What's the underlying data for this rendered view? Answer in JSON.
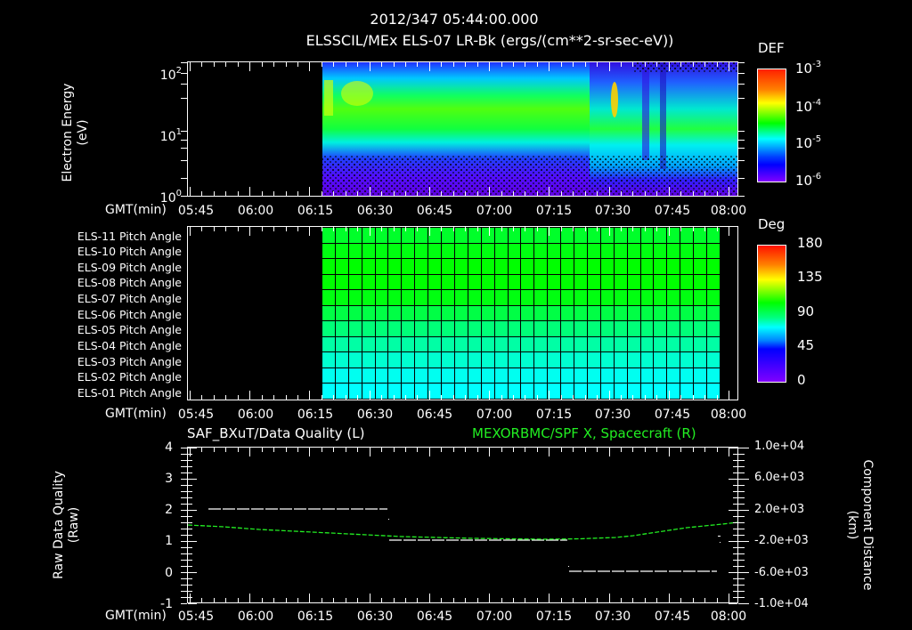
{
  "header": {
    "datetime": "2012/347 05:44:00.000",
    "subtitle": "ELSSCIL/MEx ELS-07 LR-Bk  (ergs/(cm**2-sr-sec-eV))"
  },
  "x_axis": {
    "label": "GMT(min)",
    "ticks": [
      "05:45",
      "06:00",
      "06:15",
      "06:30",
      "06:45",
      "07:00",
      "07:15",
      "07:30",
      "07:45",
      "08:00"
    ]
  },
  "panel1": {
    "ylabel_line1": "Electron Energy",
    "ylabel_line2": "(eV)",
    "yticks": [
      {
        "base": "10",
        "exp": "2"
      },
      {
        "base": "10",
        "exp": "1"
      },
      {
        "base": "10",
        "exp": "0"
      }
    ],
    "colorbar": {
      "title": "DEF",
      "ticks": [
        {
          "base": "10",
          "exp": "-3"
        },
        {
          "base": "10",
          "exp": "-4"
        },
        {
          "base": "10",
          "exp": "-5"
        },
        {
          "base": "10",
          "exp": "-6"
        }
      ]
    }
  },
  "panel2": {
    "rows": [
      "ELS-11 Pitch Angle",
      "ELS-10 Pitch Angle",
      "ELS-09 Pitch Angle",
      "ELS-08 Pitch Angle",
      "ELS-07 Pitch Angle",
      "ELS-06 Pitch Angle",
      "ELS-05 Pitch Angle",
      "ELS-04 Pitch Angle",
      "ELS-03 Pitch Angle",
      "ELS-02 Pitch Angle",
      "ELS-01 Pitch Angle"
    ],
    "row_colors": [
      "#00ff2a",
      "#00ff10",
      "#00ff00",
      "#00ff00",
      "#00ff10",
      "#00ff45",
      "#00ff78",
      "#00ffa5",
      "#00ffd0",
      "#00fff0",
      "#00ffff"
    ],
    "colorbar": {
      "title": "Deg",
      "ticks": [
        "180",
        "135",
        "90",
        "45",
        "0"
      ]
    }
  },
  "panel3": {
    "left_title": "SAF_BXuT/Data Quality (L)",
    "right_title": "MEXORBMC/SPF X, Spacecraft (R)",
    "right_title_color": "#22ee22",
    "ylabel_left_line1": "Raw Data Quality",
    "ylabel_left_line2": "(Raw)",
    "ylabel_right_line1": "Component Distance",
    "ylabel_right_line2": "(km)",
    "yticks_left": [
      "4",
      "3",
      "2",
      "1",
      "0",
      "-1"
    ],
    "yticks_right": [
      "1.0e+04",
      "6.0e+03",
      "2.0e+03",
      "-2.0e+03",
      "-6.0e+03",
      "-1.0e+04"
    ]
  },
  "chart_data": [
    {
      "type": "heatmap",
      "title": "ELSSCIL/MEx ELS-07 LR-Bk (ergs/(cm**2-sr-sec-eV))",
      "xlabel": "GMT(min)",
      "ylabel": "Electron Energy (eV)",
      "x_ticks": [
        "05:45",
        "06:00",
        "06:15",
        "06:30",
        "06:45",
        "07:00",
        "07:15",
        "07:30",
        "07:45",
        "08:00"
      ],
      "y_scale": "log",
      "ylim": [
        1,
        150
      ],
      "y_ticks": [
        "10^0",
        "10^1",
        "10^2"
      ],
      "colorbar": {
        "label": "DEF",
        "scale": "log",
        "range": [
          1e-06,
          0.001
        ],
        "ticks": [
          "10^-6",
          "10^-5",
          "10^-4",
          "10^-3"
        ]
      },
      "data_start": "06:18",
      "data_end": "08:00",
      "features": [
        {
          "time_range": [
            "06:18",
            "07:30"
          ],
          "peak_energy_eV": [
            20,
            60
          ],
          "peak_def": 0.0002,
          "note": "broad green/yellow band ~15-70 eV"
        },
        {
          "time": "06:19",
          "peak_def": 0.0003,
          "note": "yellow burst at data start"
        },
        {
          "time": "07:30",
          "energy_eV": [
            25,
            80
          ],
          "peak_def": 0.0005,
          "note": "narrow yellow/orange spike"
        },
        {
          "time_range": [
            "07:35",
            "08:00"
          ],
          "energy_eV": [
            4,
            50
          ],
          "peak_def": 5e-05,
          "note": "band broadens to lower energies, gaps near 07:39 and 07:44"
        }
      ]
    },
    {
      "type": "heatmap",
      "title": "Pitch Angle",
      "xlabel": "GMT(min)",
      "categories": [
        "ELS-11",
        "ELS-10",
        "ELS-09",
        "ELS-08",
        "ELS-07",
        "ELS-06",
        "ELS-05",
        "ELS-04",
        "ELS-03",
        "ELS-02",
        "ELS-01"
      ],
      "colorbar": {
        "label": "Deg",
        "range": [
          0,
          180
        ],
        "ticks": [
          0,
          45,
          90,
          135,
          180
        ]
      },
      "data_start": "06:18",
      "data_end": "07:58",
      "values_deg": [
        98,
        100,
        102,
        102,
        100,
        92,
        84,
        78,
        72,
        67,
        65
      ]
    },
    {
      "type": "line",
      "title_left": "SAF_BXuT/Data Quality (L)",
      "title_right": "MEXORBMC/SPF X, Spacecraft (R)",
      "xlabel": "GMT(min)",
      "ylabel_left": "Raw Data Quality (Raw)",
      "ylabel_right": "Component Distance (km)",
      "ylim_left": [
        -1,
        4
      ],
      "ylim_right": [
        -10000,
        10000
      ],
      "series": [
        {
          "name": "Data Quality",
          "axis": "left",
          "color": "#ffffff",
          "style": "dashed",
          "x": [
            "05:47",
            "06:33",
            "06:34",
            "07:19",
            "07:20",
            "07:57"
          ],
          "values": [
            2,
            2,
            1,
            1,
            0,
            0
          ]
        },
        {
          "name": "SPF X Spacecraft",
          "axis": "right",
          "color": "#22ee22",
          "style": "dotted",
          "x": [
            "05:45",
            "06:00",
            "06:15",
            "06:30",
            "06:45",
            "07:00",
            "07:15",
            "07:30",
            "07:45",
            "08:00"
          ],
          "values": [
            1900,
            1500,
            1000,
            500,
            0,
            -400,
            -500,
            -300,
            500,
            1800
          ]
        }
      ]
    }
  ]
}
